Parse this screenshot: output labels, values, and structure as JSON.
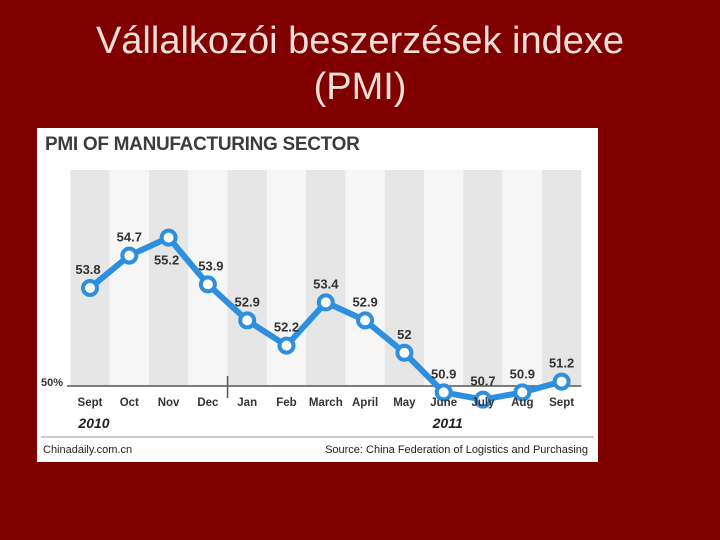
{
  "slide": {
    "title_line1": "Vállalkozói beszerzések indexe",
    "title_line2": "(PMI)"
  },
  "chart_data": {
    "type": "line",
    "title": "PMI OF MANUFACTURING SECTOR",
    "categories": [
      "Sept",
      "Oct",
      "Nov",
      "Dec",
      "Jan",
      "Feb",
      "March",
      "April",
      "May",
      "June",
      "July",
      "Aug",
      "Sept"
    ],
    "values": [
      53.8,
      54.7,
      55.2,
      53.9,
      52.9,
      52.2,
      53.4,
      52.9,
      52,
      50.9,
      50.7,
      50.9,
      51.2
    ],
    "value_labels": [
      "53.8",
      "54.7",
      "55.2",
      "53.9",
      "52.9",
      "52.2",
      "53.4",
      "52.9",
      "52",
      "50.9",
      "50.7",
      "50.9",
      "51.2"
    ],
    "y_baseline_label": "50%",
    "y_baseline": 50,
    "year_labels": [
      {
        "text": "2010",
        "category_index": 0
      },
      {
        "text": "2011",
        "category_index": 9
      }
    ],
    "source": "Source: China Federation of Logistics and Purchasing",
    "credit": "Chinadaily.com.cn",
    "line_color": "#2f8fdf",
    "grid": "alternating vertical bands"
  }
}
